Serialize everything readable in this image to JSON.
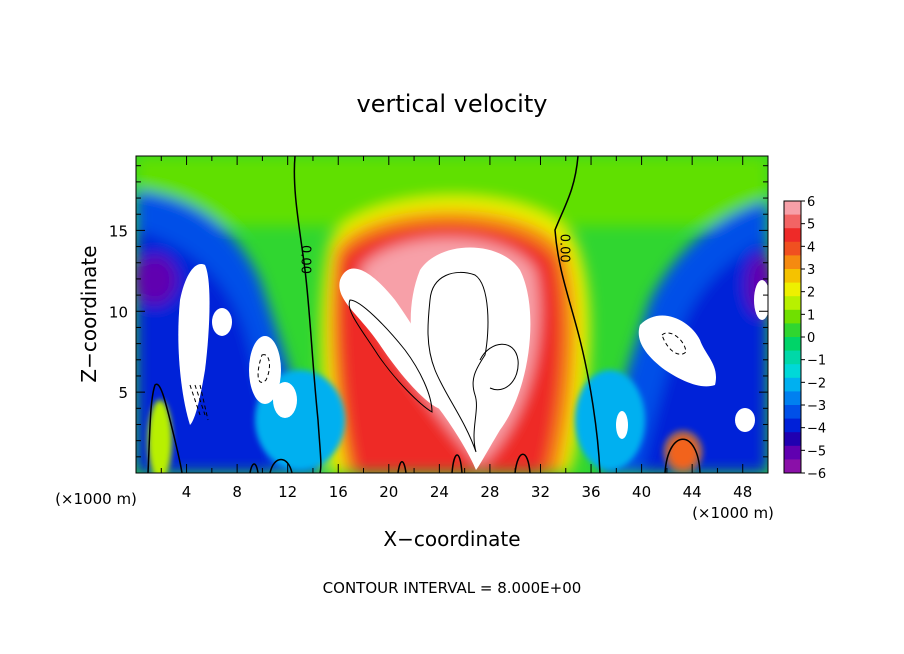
{
  "chart_data": {
    "type": "heatmap",
    "title": "vertical velocity",
    "xlabel": "X−coordinate",
    "ylabel": "Z−coordinate",
    "x_unit_left": "(×1000 m)",
    "x_unit_right": "(×1000 m)",
    "footer": "CONTOUR INTERVAL = 8.000E+00",
    "xlim": [
      0,
      50
    ],
    "ylim": [
      0,
      19.6
    ],
    "x_ticks": [
      4,
      8,
      12,
      16,
      20,
      24,
      28,
      32,
      36,
      40,
      44,
      48
    ],
    "y_ticks": [
      5,
      10,
      15
    ],
    "colorbar": {
      "ticks": [
        "6",
        "5",
        "4",
        "3",
        "2",
        "1",
        "0",
        "−1",
        "−2",
        "−3",
        "−4",
        "−5",
        "−6"
      ],
      "colors": [
        "#f7a0a8",
        "#f26464",
        "#ee2a28",
        "#f05020",
        "#f58a10",
        "#f5c200",
        "#eef000",
        "#b8f000",
        "#70e000",
        "#30d630",
        "#00d468",
        "#00d8a8",
        "#00d8d8",
        "#00b0f0",
        "#0080f0",
        "#0050e8",
        "#0020d8",
        "#2000b0",
        "#6000b0",
        "#8a10a8"
      ]
    },
    "contour_labels": [
      {
        "text": "0.00",
        "x": 13.1,
        "y": 13.2
      },
      {
        "text": "0.00",
        "x": 33.6,
        "y": 13.9
      }
    ],
    "features": [
      {
        "name": "central updraft",
        "x": 25.5,
        "y": 9.5,
        "value": 6
      },
      {
        "name": "left downdraft",
        "x": 5.0,
        "y": 9.0,
        "value": -6
      },
      {
        "name": "right downdraft",
        "x": 43.0,
        "y": 8.0,
        "value": -6
      },
      {
        "name": "small updraft",
        "x": 43.0,
        "y": 1.2,
        "value": 5
      }
    ]
  }
}
